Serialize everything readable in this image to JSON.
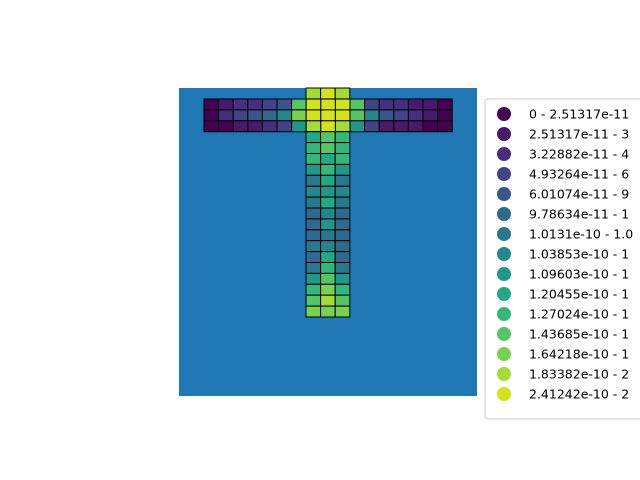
{
  "chart_data": {
    "type": "heatmap",
    "title": "",
    "xlabel": "",
    "ylabel": "",
    "background_color": "#1f77b4",
    "cell_edge_color": "#000000",
    "legend_position": "right",
    "legend_entries": [
      {
        "label": "0 - 2.51317e-11",
        "color": "#440154"
      },
      {
        "label": "2.51317e-11 - 3",
        "color": "#481a6c"
      },
      {
        "label": "3.22882e-11 - 4",
        "color": "#472f7d"
      },
      {
        "label": "4.93264e-11 - 6",
        "color": "#414487"
      },
      {
        "label": "6.01074e-11 - 9",
        "color": "#39568c"
      },
      {
        "label": "9.78634e-11 - 1",
        "color": "#31688e"
      },
      {
        "label": "1.0131e-10 - 1.0",
        "color": "#2a788e"
      },
      {
        "label": "1.03853e-10 - 1",
        "color": "#23888e"
      },
      {
        "label": "1.09603e-10 - 1",
        "color": "#1f988b"
      },
      {
        "label": "1.20455e-10 - 1",
        "color": "#22a884"
      },
      {
        "label": "1.27024e-10 - 1",
        "color": "#35b779"
      },
      {
        "label": "1.43685e-10 - 1",
        "color": "#54c568"
      },
      {
        "label": "1.64218e-10 - 1",
        "color": "#7ad151"
      },
      {
        "label": "1.83382e-10 - 2",
        "color": "#a5db36"
      },
      {
        "label": "2.41242e-10 - 2",
        "color": "#d2e21b"
      }
    ],
    "flange": {
      "columns": 17,
      "rows": 3,
      "class_grid": [
        [
          0,
          1,
          2,
          2,
          3,
          4,
          11,
          14,
          14,
          14,
          11,
          3,
          2,
          2,
          1,
          1,
          0
        ],
        [
          0,
          2,
          3,
          4,
          5,
          7,
          12,
          14,
          14,
          14,
          11,
          7,
          4,
          3,
          2,
          1,
          0
        ],
        [
          0,
          0,
          1,
          1,
          2,
          3,
          8,
          13,
          14,
          13,
          8,
          3,
          1,
          1,
          1,
          0,
          0
        ]
      ]
    },
    "web": {
      "columns": 3,
      "rows_above_flange": 1,
      "rows_below_flange": 17,
      "class_above": [
        13,
        14,
        13
      ],
      "class_grid": [
        [
          9,
          11,
          10
        ],
        [
          10,
          11,
          10
        ],
        [
          10,
          9,
          10
        ],
        [
          8,
          10,
          8
        ],
        [
          6,
          9,
          6
        ],
        [
          7,
          8,
          7
        ],
        [
          6,
          9,
          6
        ],
        [
          5,
          7,
          5
        ],
        [
          5,
          8,
          5
        ],
        [
          5,
          6,
          5
        ],
        [
          6,
          7,
          5
        ],
        [
          5,
          9,
          5
        ],
        [
          6,
          10,
          6
        ],
        [
          8,
          11,
          8
        ],
        [
          10,
          12,
          10
        ],
        [
          11,
          13,
          11
        ],
        [
          12,
          12,
          12
        ]
      ]
    }
  }
}
